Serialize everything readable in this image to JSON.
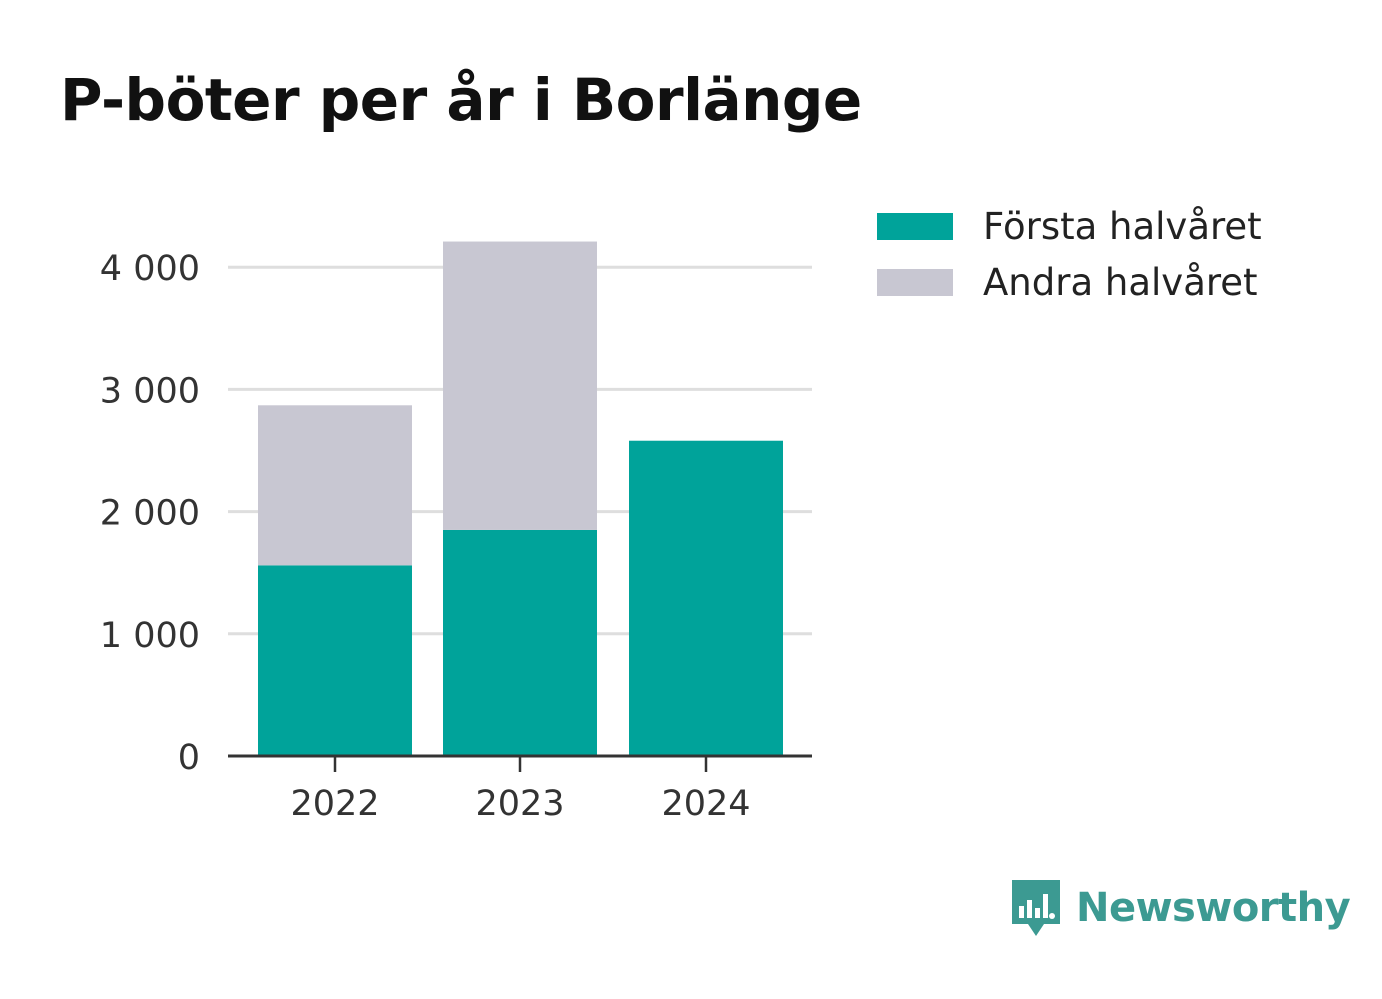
{
  "title": "P-böter per år i Borlänge",
  "chart_data": {
    "type": "bar",
    "stacked": true,
    "categories": [
      "2022",
      "2023",
      "2024"
    ],
    "series": [
      {
        "name": "Första halvåret",
        "color": "#00a39a",
        "values": [
          1560,
          1850,
          2580
        ]
      },
      {
        "name": "Andra halvåret",
        "color": "#c8c7d2",
        "values": [
          1310,
          2360,
          0
        ]
      }
    ],
    "y_ticks": [
      0,
      1000,
      2000,
      3000,
      4000
    ],
    "y_tick_labels": [
      "0",
      "1 000",
      "2 000",
      "3 000",
      "4 000"
    ],
    "ylim": [
      0,
      4200
    ],
    "grid": true,
    "legend_position": "top-right"
  },
  "brand": {
    "name": "Newsworthy",
    "icon": "bar-chart-speech-bubble-icon",
    "color": "#3c9a92"
  }
}
